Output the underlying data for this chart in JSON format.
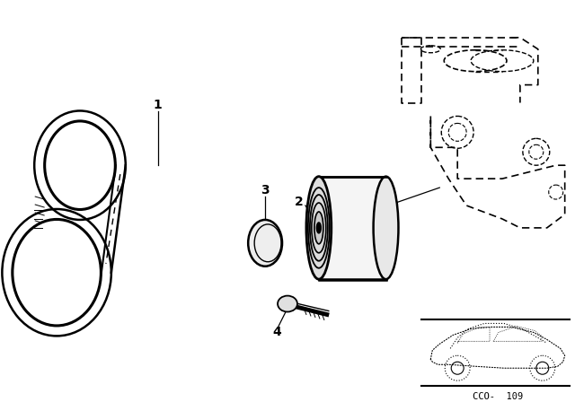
{
  "bg_color": "#ffffff",
  "line_color": "#000000",
  "fig_width": 6.4,
  "fig_height": 4.48,
  "dpi": 100,
  "footer_code": "CCO-  109"
}
